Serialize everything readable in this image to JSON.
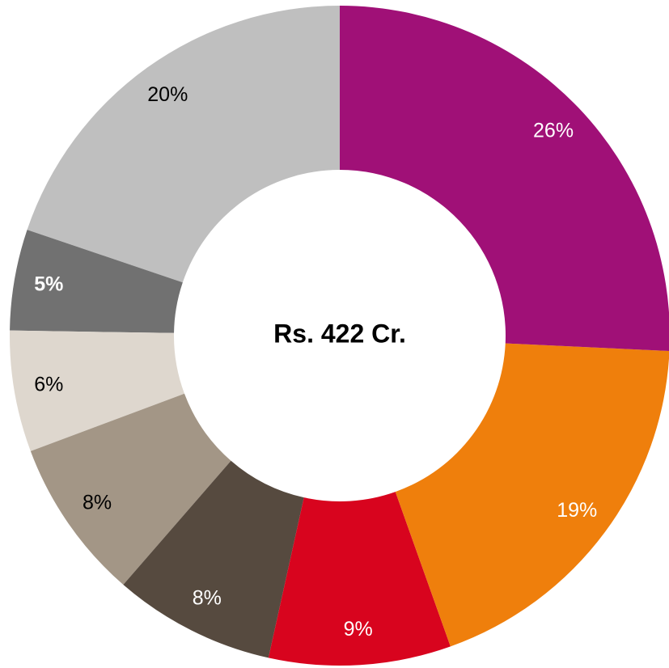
{
  "chart_data": {
    "type": "donut",
    "center_label": "Rs. 422 Cr.",
    "values": [
      26,
      19,
      9,
      8,
      8,
      6,
      5,
      20
    ],
    "value_labels": [
      "26%",
      "19%",
      "9%",
      "8%",
      "8%",
      "6%",
      "5%",
      "20%"
    ],
    "colors": [
      "#a01077",
      "#ef7f0c",
      "#d8041e",
      "#564a3f",
      "#a39686",
      "#ded7ce",
      "#717171",
      "#bfbfbf"
    ],
    "label_colors": [
      "#ffffff",
      "#ffffff",
      "#ffffff",
      "#ffffff",
      "#000000",
      "#000000",
      "#ffffff",
      "#000000"
    ],
    "label_bold": [
      false,
      false,
      false,
      false,
      false,
      false,
      true,
      false
    ]
  }
}
